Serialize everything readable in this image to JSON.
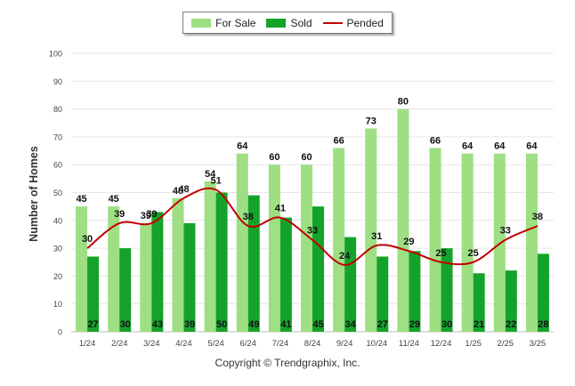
{
  "legend": {
    "items": [
      {
        "label": "For Sale",
        "color": "#9ddf82"
      },
      {
        "label": "Sold",
        "color": "#14a32a"
      },
      {
        "label": "Pended",
        "color": "#c00000"
      }
    ]
  },
  "credit": "Copyright © Trendgraphix, Inc.",
  "chart_data": {
    "type": "bar",
    "title": "",
    "xlabel": "",
    "ylabel": "Number of Homes",
    "ylim": [
      0,
      100
    ],
    "yticks": [
      0,
      10,
      20,
      30,
      40,
      50,
      60,
      70,
      80,
      90,
      100
    ],
    "grid": true,
    "legend_position": "top-center",
    "categories": [
      "1/24",
      "2/24",
      "3/24",
      "4/24",
      "5/24",
      "6/24",
      "7/24",
      "8/24",
      "9/24",
      "10/24",
      "11/24",
      "12/24",
      "1/25",
      "2/25",
      "3/25"
    ],
    "series": [
      {
        "name": "For Sale",
        "kind": "bar",
        "color": "#9ddf82",
        "values": [
          45,
          45,
          39,
          48,
          54,
          64,
          60,
          60,
          66,
          73,
          80,
          66,
          64,
          64,
          64
        ]
      },
      {
        "name": "Sold",
        "kind": "bar",
        "color": "#14a32a",
        "values": [
          27,
          30,
          43,
          39,
          50,
          49,
          41,
          45,
          34,
          27,
          29,
          30,
          21,
          22,
          28
        ]
      },
      {
        "name": "Pended",
        "kind": "line",
        "color": "#c00000",
        "values": [
          30,
          39,
          39,
          48,
          51,
          38,
          41,
          33,
          24,
          31,
          29,
          25,
          25,
          33,
          38
        ]
      }
    ]
  }
}
